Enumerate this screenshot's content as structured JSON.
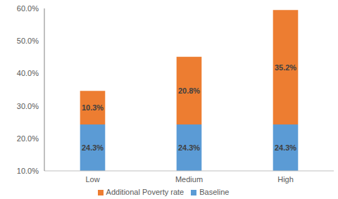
{
  "chart_data": {
    "type": "bar",
    "categories": [
      "Low",
      "Medium",
      "High"
    ],
    "series": [
      {
        "name": "Baseline",
        "color": "#5b9bd5",
        "values": [
          24.3,
          24.3,
          24.3
        ],
        "value_labels": [
          "24.3%",
          "24.3%",
          "24.3%"
        ]
      },
      {
        "name": "Additional Poverty rate",
        "color": "#ed7d31",
        "values": [
          10.3,
          20.8,
          35.2
        ],
        "value_labels": [
          "10.3%",
          "20.8%",
          "35.2%"
        ]
      }
    ],
    "ylim": [
      10,
      60
    ],
    "yticks": [
      {
        "value": 10,
        "label": "10.0%"
      },
      {
        "value": 20,
        "label": "20.0%"
      },
      {
        "value": 30,
        "label": "30.0%"
      },
      {
        "value": 40,
        "label": "40.0%"
      },
      {
        "value": 50,
        "label": "50.0%"
      },
      {
        "value": 60,
        "label": "60.0%"
      }
    ],
    "stacked": true,
    "data_labels": true,
    "grid": false,
    "legend": "bottom"
  }
}
